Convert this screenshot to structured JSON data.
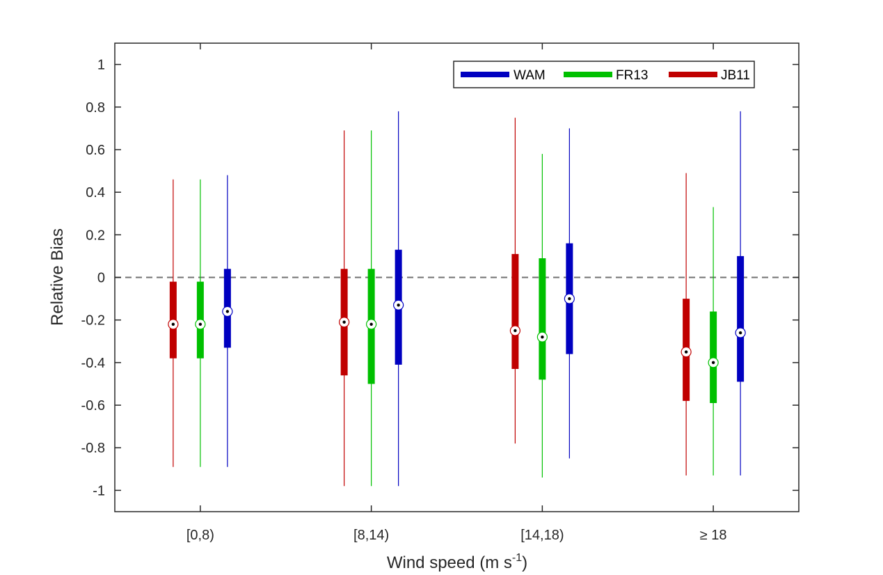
{
  "chart_data": {
    "type": "box",
    "title": "",
    "xlabel": "Wind speed (m s",
    "xlabel_sup": "-1",
    "xlabel_end": ")",
    "ylabel": "Relative Bias",
    "ylim": [
      -1.1,
      1.1
    ],
    "yticks": [
      1,
      0.8,
      0.6,
      0.4,
      0.2,
      0,
      -0.2,
      -0.4,
      -0.6,
      -0.8,
      -1
    ],
    "ytick_labels": [
      "1",
      "0.8",
      "0.6",
      "0.4",
      "0.2",
      "0",
      "-0.2",
      "-0.4",
      "-0.6",
      "-0.8",
      "-1"
    ],
    "categories": [
      "[0,8)",
      "[8,14)",
      "[14,18)",
      "≥ 18"
    ],
    "reference_line": 0,
    "legend_position": "top-right",
    "series": [
      {
        "name": "JB11",
        "color": "#c00000",
        "stats": [
          {
            "min": -0.89,
            "q1": -0.38,
            "median": -0.22,
            "q3": -0.02,
            "max": 0.46
          },
          {
            "min": -0.98,
            "q1": -0.46,
            "median": -0.21,
            "q3": 0.04,
            "max": 0.69
          },
          {
            "min": -0.78,
            "q1": -0.43,
            "median": -0.25,
            "q3": 0.11,
            "max": 0.75
          },
          {
            "min": -0.93,
            "q1": -0.58,
            "median": -0.35,
            "q3": -0.1,
            "max": 0.49
          }
        ]
      },
      {
        "name": "FR13",
        "color": "#00c000",
        "stats": [
          {
            "min": -0.89,
            "q1": -0.38,
            "median": -0.22,
            "q3": -0.02,
            "max": 0.46
          },
          {
            "min": -0.98,
            "q1": -0.5,
            "median": -0.22,
            "q3": 0.04,
            "max": 0.69
          },
          {
            "min": -0.94,
            "q1": -0.48,
            "median": -0.28,
            "q3": 0.09,
            "max": 0.58
          },
          {
            "min": -0.93,
            "q1": -0.59,
            "median": -0.4,
            "q3": -0.16,
            "max": 0.33
          }
        ]
      },
      {
        "name": "WAM",
        "color": "#0000c0",
        "stats": [
          {
            "min": -0.89,
            "q1": -0.33,
            "median": -0.16,
            "q3": 0.04,
            "max": 0.48
          },
          {
            "min": -0.98,
            "q1": -0.41,
            "median": -0.13,
            "q3": 0.13,
            "max": 0.78
          },
          {
            "min": -0.85,
            "q1": -0.36,
            "median": -0.1,
            "q3": 0.16,
            "max": 0.7
          },
          {
            "min": -0.93,
            "q1": -0.49,
            "median": -0.26,
            "q3": 0.1,
            "max": 0.78
          }
        ]
      }
    ],
    "legend_order": [
      "WAM",
      "FR13",
      "JB11"
    ]
  }
}
